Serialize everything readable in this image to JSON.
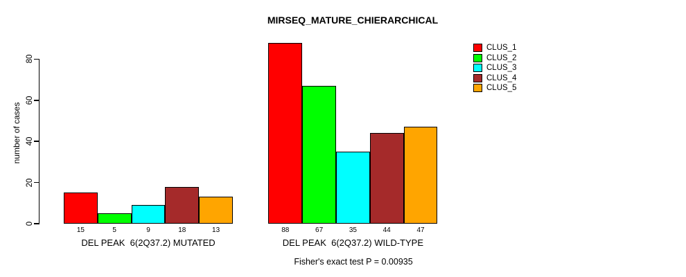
{
  "figure": {
    "title": "MIRSEQ_MATURE_CHIERARCHICAL",
    "y_axis_label": "number of cases",
    "annotation": "Fisher's exact test P = 0.00935"
  },
  "legend": {
    "items": [
      {
        "label": "CLUS_1",
        "color": "#FF0000"
      },
      {
        "label": "CLUS_2",
        "color": "#00FF00"
      },
      {
        "label": "CLUS_3",
        "color": "#00FFFF"
      },
      {
        "label": "CLUS_4",
        "color": "#A52A2A"
      },
      {
        "label": "CLUS_5",
        "color": "#FFA500"
      }
    ]
  },
  "chart_data": {
    "type": "bar",
    "title": "MIRSEQ_MATURE_CHIERARCHICAL",
    "xlabel": "",
    "ylabel": "number of cases",
    "y_ticks": [
      0,
      20,
      40,
      60,
      80
    ],
    "ylim": [
      0,
      88
    ],
    "grid": false,
    "legend_position": "top-right",
    "bar_value_labels_shown": true,
    "series_names": [
      "CLUS_1",
      "CLUS_2",
      "CLUS_3",
      "CLUS_4",
      "CLUS_5"
    ],
    "series_colors": [
      "#FF0000",
      "#00FF00",
      "#00FFFF",
      "#A52A2A",
      "#FFA500"
    ],
    "groups": [
      {
        "label": "DEL PEAK  6(2Q37.2) MUTATED",
        "values": [
          15,
          5,
          9,
          18,
          13
        ]
      },
      {
        "label": "DEL PEAK  6(2Q37.2) WILD-TYPE",
        "values": [
          88,
          67,
          35,
          44,
          47
        ]
      }
    ],
    "series": [
      {
        "name": "CLUS_1",
        "color": "#FF0000",
        "values": [
          15,
          88
        ]
      },
      {
        "name": "CLUS_2",
        "color": "#00FF00",
        "values": [
          5,
          67
        ]
      },
      {
        "name": "CLUS_3",
        "color": "#00FFFF",
        "values": [
          9,
          35
        ]
      },
      {
        "name": "CLUS_4",
        "color": "#A52A2A",
        "values": [
          18,
          44
        ]
      },
      {
        "name": "CLUS_5",
        "color": "#FFA500",
        "values": [
          13,
          47
        ]
      }
    ],
    "annotation": "Fisher's exact test P = 0.00935"
  }
}
